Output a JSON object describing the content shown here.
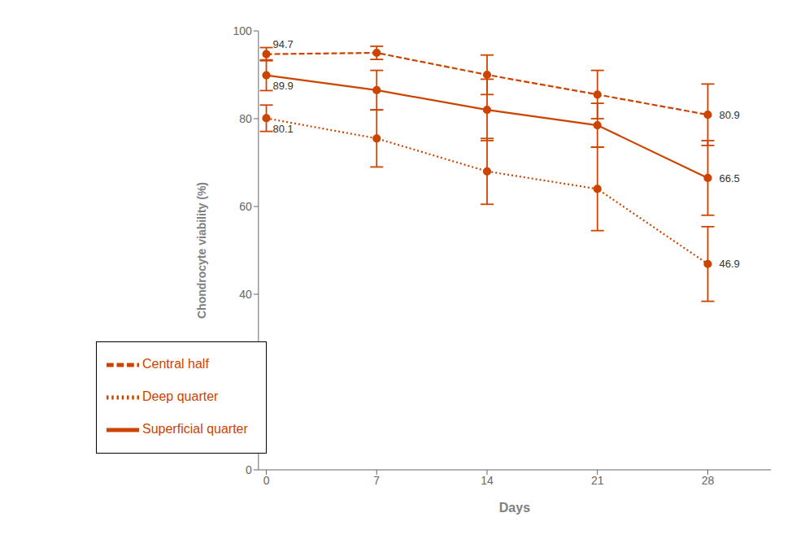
{
  "chart_data": {
    "type": "line",
    "xlabel": "Days",
    "ylabel": "Chondrocyte viability (%)",
    "x": [
      0,
      7,
      14,
      21,
      28
    ],
    "xlim": [
      -0.5,
      32
    ],
    "xticks": [
      0,
      7,
      14,
      21,
      28
    ],
    "ylim": [
      0,
      100
    ],
    "yticks": [
      0,
      20,
      40,
      60,
      80,
      100
    ],
    "grid": false,
    "legend": "lower left",
    "series": [
      {
        "name": "Superficial quarter",
        "color": "#CC4400",
        "line_style": "solid",
        "marker": "circle",
        "values": [
          89.9,
          86.5,
          82.0,
          78.5,
          66.5
        ],
        "errors": [
          3.5,
          4.5,
          7.0,
          5.0,
          8.5
        ]
      },
      {
        "name": "Central half",
        "color": "#CC4400",
        "line_style": "dashed",
        "marker": "circle",
        "values": [
          94.7,
          95.0,
          90.0,
          85.5,
          80.9
        ],
        "errors": [
          1.5,
          1.5,
          4.5,
          5.5,
          7.0
        ]
      },
      {
        "name": "Deep quarter",
        "color": "#CC4400",
        "line_style": "dotted",
        "marker": "circle",
        "values": [
          80.1,
          75.5,
          68.0,
          64.0,
          46.9
        ],
        "errors": [
          3.0,
          6.5,
          7.5,
          9.5,
          8.5
        ]
      }
    ],
    "annotations": [
      {
        "text": "94.7",
        "x": 0,
        "y": 94.7
      },
      {
        "text": "89.9",
        "x": 0,
        "y": 89.9
      },
      {
        "text": "80.1",
        "x": 0,
        "y": 80.1
      },
      {
        "text": "80.9",
        "x": 28,
        "y": 80.9
      },
      {
        "text": "66.5",
        "x": 28,
        "y": 66.5
      },
      {
        "text": "46.9",
        "x": 28,
        "y": 46.9
      }
    ]
  }
}
